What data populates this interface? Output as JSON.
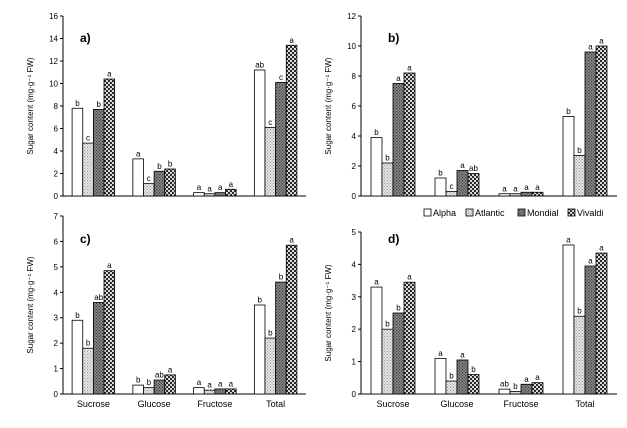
{
  "figure": {
    "legend_items": [
      {
        "name": "Alpha",
        "pattern": "white"
      },
      {
        "name": "Atlantic",
        "pattern": "light-gray"
      },
      {
        "name": "Mondial",
        "pattern": "dark-gray"
      },
      {
        "name": "Vivaldi",
        "pattern": "checker"
      }
    ],
    "legend_placement": "top of panel d"
  },
  "chart_data": [
    {
      "type": "bar",
      "panel": "a)",
      "ylabel": "Sugar content (mg·g⁻¹ FW)",
      "ylim": [
        0,
        16
      ],
      "yticks": [
        0,
        2,
        4,
        6,
        8,
        10,
        12,
        14,
        16
      ],
      "categories": [
        "Sucrose",
        "Glucose",
        "Fructose",
        "Total"
      ],
      "show_category_labels": false,
      "series": [
        {
          "name": "Alpha",
          "values": [
            7.8,
            3.3,
            0.3,
            11.2
          ],
          "letters": [
            "b",
            "a",
            "a",
            "ab"
          ]
        },
        {
          "name": "Atlantic",
          "values": [
            4.7,
            1.1,
            0.2,
            6.1
          ],
          "letters": [
            "c",
            "c",
            "a",
            "c"
          ]
        },
        {
          "name": "Mondial",
          "values": [
            7.7,
            2.2,
            0.3,
            10.1
          ],
          "letters": [
            "b",
            "b",
            "a",
            "c"
          ]
        },
        {
          "name": "Vivaldi",
          "values": [
            10.4,
            2.4,
            0.6,
            13.4
          ],
          "letters": [
            "a",
            "b",
            "a",
            "a"
          ]
        }
      ]
    },
    {
      "type": "bar",
      "panel": "b)",
      "ylabel": "Sugar content (mg·g⁻¹ FW)",
      "ylim": [
        0,
        12
      ],
      "yticks": [
        0,
        2,
        4,
        6,
        8,
        10,
        12
      ],
      "categories": [
        "Sucrose",
        "Glucose",
        "Fructose",
        "Total"
      ],
      "show_category_labels": false,
      "series": [
        {
          "name": "Alpha",
          "values": [
            3.9,
            1.2,
            0.15,
            5.3
          ],
          "letters": [
            "b",
            "b",
            "a",
            "b"
          ]
        },
        {
          "name": "Atlantic",
          "values": [
            2.2,
            0.3,
            0.15,
            2.7
          ],
          "letters": [
            "b",
            "c",
            "a",
            "b"
          ]
        },
        {
          "name": "Mondial",
          "values": [
            7.5,
            1.7,
            0.25,
            9.6
          ],
          "letters": [
            "a",
            "a",
            "a",
            "a"
          ]
        },
        {
          "name": "Vivaldi",
          "values": [
            8.2,
            1.5,
            0.25,
            10.0
          ],
          "letters": [
            "a",
            "ab",
            "a",
            "a"
          ]
        }
      ]
    },
    {
      "type": "bar",
      "panel": "c)",
      "ylabel": "Sugar content (mg·g⁻¹ FW)",
      "ylim": [
        0,
        7
      ],
      "yticks": [
        0,
        1,
        2,
        3,
        4,
        5,
        6,
        7
      ],
      "categories": [
        "Sucrose",
        "Glucose",
        "Fructose",
        "Total"
      ],
      "show_category_labels": true,
      "series": [
        {
          "name": "Alpha",
          "values": [
            2.9,
            0.35,
            0.25,
            3.5
          ],
          "letters": [
            "b",
            "b",
            "a",
            "b"
          ]
        },
        {
          "name": "Atlantic",
          "values": [
            1.8,
            0.25,
            0.15,
            2.2
          ],
          "letters": [
            "b",
            "b",
            "a",
            "b"
          ]
        },
        {
          "name": "Mondial",
          "values": [
            3.6,
            0.55,
            0.2,
            4.4
          ],
          "letters": [
            "ab",
            "ab",
            "a",
            "b"
          ]
        },
        {
          "name": "Vivaldi",
          "values": [
            4.85,
            0.75,
            0.2,
            5.85
          ],
          "letters": [
            "a",
            "a",
            "a",
            "a"
          ]
        }
      ]
    },
    {
      "type": "bar",
      "panel": "d)",
      "ylabel": "Sugar content (mg·g⁻¹ FW)",
      "ylim": [
        0,
        5
      ],
      "yticks": [
        0,
        1,
        2,
        3,
        4,
        5
      ],
      "categories": [
        "Sucrose",
        "Glucose",
        "Fructose",
        "Total"
      ],
      "show_category_labels": true,
      "series": [
        {
          "name": "Alpha",
          "values": [
            3.3,
            1.1,
            0.15,
            4.6
          ],
          "letters": [
            "a",
            "a",
            "ab",
            "a"
          ]
        },
        {
          "name": "Atlantic",
          "values": [
            2.0,
            0.4,
            0.08,
            2.4
          ],
          "letters": [
            "b",
            "b",
            "b",
            "b"
          ]
        },
        {
          "name": "Mondial",
          "values": [
            2.5,
            1.05,
            0.3,
            3.95
          ],
          "letters": [
            "b",
            "a",
            "a",
            "a"
          ]
        },
        {
          "name": "Vivaldi",
          "values": [
            3.45,
            0.6,
            0.35,
            4.35
          ],
          "letters": [
            "a",
            "b",
            "a",
            "a"
          ]
        }
      ]
    }
  ]
}
